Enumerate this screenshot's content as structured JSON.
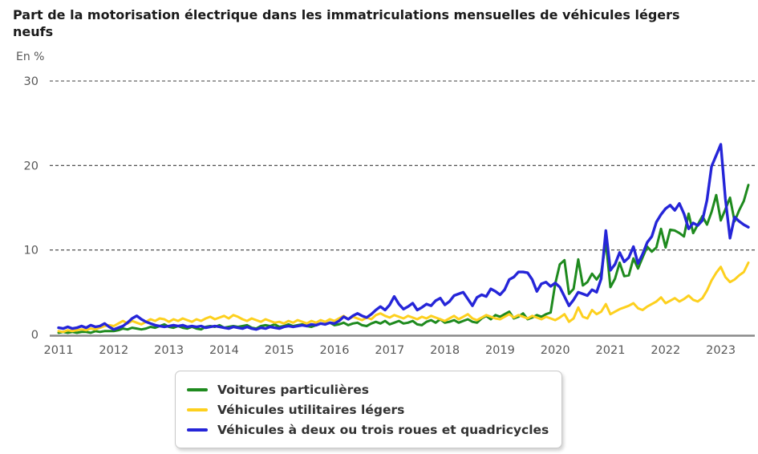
{
  "chart_data": {
    "type": "line",
    "title": "Part de la motorisation électrique dans les immatriculations mensuelles de véhicules légers neufs",
    "ylabel": "En %",
    "ylim": [
      0,
      30
    ],
    "yticks": [
      0,
      10,
      20,
      30
    ],
    "xticks": [
      "2011",
      "2012",
      "2013",
      "2014",
      "2015",
      "2016",
      "2017",
      "2018",
      "2019",
      "2020",
      "2021",
      "2022",
      "2023"
    ],
    "x_start": "2011-01",
    "x_end": "2023-07",
    "x_frequency": "monthly",
    "grid": "horizontal-dashed",
    "legend_position": "bottom",
    "axis_color": "#575757",
    "gridline_color": "#3c3c3c",
    "baseline_color": "#8a8a8a",
    "series": [
      {
        "name": "Voitures particulières",
        "color": "#1e8a1e",
        "values": [
          0.2,
          0.3,
          0.2,
          0.3,
          0.2,
          0.3,
          0.3,
          0.2,
          0.4,
          0.3,
          0.4,
          0.4,
          0.4,
          0.5,
          0.7,
          0.6,
          0.8,
          0.7,
          0.6,
          0.7,
          0.9,
          0.8,
          1.0,
          1.2,
          0.9,
          0.8,
          1.0,
          0.8,
          0.7,
          0.9,
          0.7,
          0.6,
          0.9,
          1.0,
          0.9,
          1.1,
          0.8,
          0.9,
          1.0,
          0.9,
          1.0,
          1.1,
          0.8,
          0.7,
          1.0,
          1.1,
          1.0,
          1.2,
          0.9,
          1.0,
          1.2,
          1.0,
          1.1,
          1.2,
          1.0,
          0.9,
          1.1,
          1.3,
          1.2,
          1.4,
          1.1,
          1.2,
          1.4,
          1.1,
          1.3,
          1.4,
          1.1,
          1.0,
          1.3,
          1.5,
          1.3,
          1.6,
          1.2,
          1.4,
          1.6,
          1.3,
          1.4,
          1.6,
          1.2,
          1.1,
          1.5,
          1.7,
          1.4,
          1.8,
          1.4,
          1.5,
          1.7,
          1.4,
          1.6,
          1.8,
          1.5,
          1.4,
          1.9,
          2.2,
          1.8,
          2.3,
          2.1,
          2.4,
          2.7,
          1.9,
          2.1,
          2.5,
          1.8,
          2.0,
          2.3,
          2.1,
          2.4,
          2.6,
          6.0,
          8.3,
          8.8,
          4.8,
          5.4,
          8.9,
          5.8,
          6.2,
          7.2,
          6.5,
          7.3,
          11.0,
          5.6,
          6.6,
          8.5,
          6.9,
          7.0,
          9.0,
          7.8,
          9.1,
          10.4,
          9.8,
          10.3,
          12.5,
          10.3,
          12.4,
          12.3,
          12.0,
          11.6,
          14.3,
          12.0,
          13.0,
          14.0,
          13.0,
          14.5,
          16.5,
          13.5,
          14.8,
          16.2,
          13.4,
          14.7,
          15.8,
          17.7
        ]
      },
      {
        "name": "Véhicules utilitaires légers",
        "color": "#fdd01e",
        "values": [
          0.4,
          0.3,
          0.5,
          0.4,
          0.5,
          0.6,
          0.5,
          0.7,
          0.6,
          0.8,
          1.0,
          1.1,
          1.0,
          1.3,
          1.6,
          1.3,
          1.6,
          1.4,
          1.2,
          1.5,
          1.8,
          1.6,
          1.9,
          1.8,
          1.5,
          1.8,
          1.6,
          1.9,
          1.7,
          1.5,
          1.8,
          1.6,
          1.9,
          2.1,
          1.8,
          2.0,
          2.2,
          1.9,
          2.3,
          2.1,
          1.8,
          1.6,
          1.9,
          1.7,
          1.5,
          1.8,
          1.6,
          1.4,
          1.5,
          1.3,
          1.6,
          1.4,
          1.7,
          1.5,
          1.3,
          1.6,
          1.4,
          1.7,
          1.5,
          1.8,
          1.6,
          1.9,
          2.2,
          1.8,
          2.1,
          1.9,
          1.7,
          2.0,
          1.8,
          2.3,
          2.5,
          2.2,
          2.0,
          2.3,
          2.1,
          1.9,
          2.2,
          2.0,
          1.8,
          2.1,
          1.9,
          2.2,
          2.0,
          1.8,
          1.6,
          1.9,
          2.2,
          1.8,
          2.1,
          2.4,
          1.9,
          1.7,
          2.0,
          2.3,
          2.1,
          1.9,
          1.8,
          2.1,
          2.4,
          2.0,
          2.3,
          2.1,
          1.9,
          2.2,
          2.0,
          1.8,
          2.1,
          1.9,
          1.7,
          2.0,
          2.4,
          1.5,
          1.9,
          3.2,
          2.1,
          1.9,
          2.9,
          2.4,
          2.7,
          3.6,
          2.4,
          2.7,
          3.0,
          3.2,
          3.4,
          3.7,
          3.1,
          2.9,
          3.3,
          3.6,
          3.9,
          4.4,
          3.7,
          4.0,
          4.3,
          3.9,
          4.2,
          4.6,
          4.1,
          3.9,
          4.3,
          5.2,
          6.4,
          7.3,
          8.0,
          6.8,
          6.2,
          6.5,
          7.0,
          7.4,
          8.5
        ]
      },
      {
        "name": "Véhicules à deux ou trois roues et quadricycles",
        "color": "#2525d8",
        "values": [
          0.8,
          0.7,
          0.9,
          0.7,
          0.8,
          1.0,
          0.8,
          1.1,
          0.9,
          1.0,
          1.3,
          0.9,
          0.6,
          0.8,
          1.0,
          1.4,
          1.9,
          2.2,
          1.8,
          1.5,
          1.3,
          1.1,
          1.0,
          0.9,
          1.0,
          1.1,
          1.0,
          1.1,
          0.9,
          1.0,
          0.9,
          1.0,
          0.8,
          0.9,
          1.0,
          0.9,
          0.8,
          0.7,
          0.9,
          0.8,
          0.7,
          0.9,
          0.7,
          0.6,
          0.8,
          0.7,
          0.9,
          0.8,
          0.7,
          0.9,
          1.0,
          0.9,
          1.0,
          1.1,
          1.0,
          1.2,
          1.1,
          1.3,
          1.2,
          1.4,
          1.3,
          1.6,
          2.1,
          1.8,
          2.2,
          2.5,
          2.2,
          2.0,
          2.4,
          2.9,
          3.3,
          2.9,
          3.5,
          4.5,
          3.6,
          3.0,
          3.3,
          3.7,
          2.9,
          3.2,
          3.6,
          3.4,
          4.0,
          4.3,
          3.5,
          3.9,
          4.6,
          4.8,
          5.0,
          4.2,
          3.4,
          4.4,
          4.7,
          4.5,
          5.4,
          5.1,
          4.7,
          5.3,
          6.5,
          6.8,
          7.4,
          7.4,
          7.3,
          6.5,
          5.1,
          6.0,
          6.2,
          5.7,
          6.1,
          5.6,
          4.5,
          3.4,
          4.1,
          5.0,
          4.8,
          4.6,
          5.3,
          5.0,
          6.6,
          12.3,
          7.6,
          8.3,
          9.7,
          8.6,
          9.1,
          10.4,
          8.4,
          9.5,
          10.9,
          11.6,
          13.3,
          14.2,
          14.9,
          15.3,
          14.7,
          15.5,
          14.3,
          12.5,
          13.2,
          12.9,
          13.5,
          15.9,
          19.9,
          21.2,
          22.5,
          16.1,
          11.4,
          13.9,
          13.4,
          13.0,
          12.7
        ]
      }
    ]
  }
}
